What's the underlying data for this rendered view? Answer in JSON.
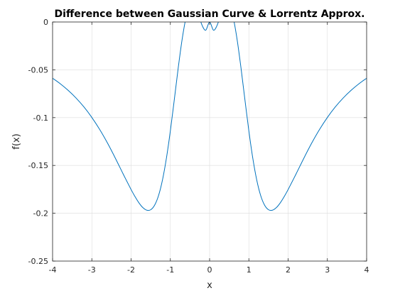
{
  "chart_data": {
    "type": "line",
    "title": "Difference between Gaussian Curve & Lorrentz Approx.",
    "xlabel": "x",
    "ylabel": "f(x)",
    "xlim": [
      -4,
      4
    ],
    "ylim": [
      -0.25,
      0
    ],
    "grid": true,
    "xticks": [
      -4,
      -3,
      -2,
      -1,
      0,
      1,
      2,
      3,
      4
    ],
    "xtick_labels": [
      "-4",
      "-3",
      "-2",
      "-1",
      "0",
      "1",
      "2",
      "3",
      "4"
    ],
    "yticks": [
      0,
      -0.05,
      -0.1,
      -0.15,
      -0.2,
      -0.25
    ],
    "ytick_labels": [
      "0",
      "-0.05",
      "-0.1",
      "-0.15",
      "-0.2",
      "-0.25"
    ],
    "series": [
      {
        "color": "#0072bd",
        "x": [
          -4,
          -3.8,
          -3.6,
          -3.4,
          -3.2,
          -3,
          -2.8,
          -2.6,
          -2.4,
          -2.2,
          -2,
          -1.9,
          -1.8,
          -1.7,
          -1.6,
          -1.5,
          -1.4,
          -1.3,
          -1.2,
          -1.1,
          -1,
          -0.9,
          -0.8,
          -0.7,
          -0.6,
          -0.5,
          -0.4,
          -0.3,
          -0.2,
          -0.1,
          0,
          0.1,
          0.2,
          0.3,
          0.4,
          0.5,
          0.6,
          0.7,
          0.8,
          0.9,
          1,
          1.1,
          1.2,
          1.3,
          1.4,
          1.5,
          1.6,
          1.7,
          1.8,
          1.9,
          2,
          2.2,
          2.4,
          2.6,
          2.8,
          3,
          3.2,
          3.4,
          3.6,
          3.8,
          4
        ],
        "y": [
          -0.0588,
          -0.0647,
          -0.0716,
          -0.0796,
          -0.0889,
          -0.0998,
          -0.1124,
          -0.1267,
          -0.1425,
          -0.1591,
          -0.1752,
          -0.1826,
          -0.1891,
          -0.1941,
          -0.1968,
          -0.1963,
          -0.1915,
          -0.1814,
          -0.1651,
          -0.1424,
          -0.1139,
          -0.0815,
          -0.0482,
          -0.0182,
          0.0049,
          0.0178,
          0.0191,
          0.0102,
          -0.0026,
          -0.0086,
          0,
          -0.0086,
          -0.0026,
          0.0102,
          0.0191,
          0.0178,
          0.0049,
          -0.0182,
          -0.0482,
          -0.0815,
          -0.1139,
          -0.1424,
          -0.1651,
          -0.1814,
          -0.1915,
          -0.1963,
          -0.1968,
          -0.1941,
          -0.1891,
          -0.1826,
          -0.1752,
          -0.1591,
          -0.1425,
          -0.1267,
          -0.1124,
          -0.0998,
          -0.0889,
          -0.0796,
          -0.0716,
          -0.0647,
          -0.0588
        ]
      }
    ]
  }
}
